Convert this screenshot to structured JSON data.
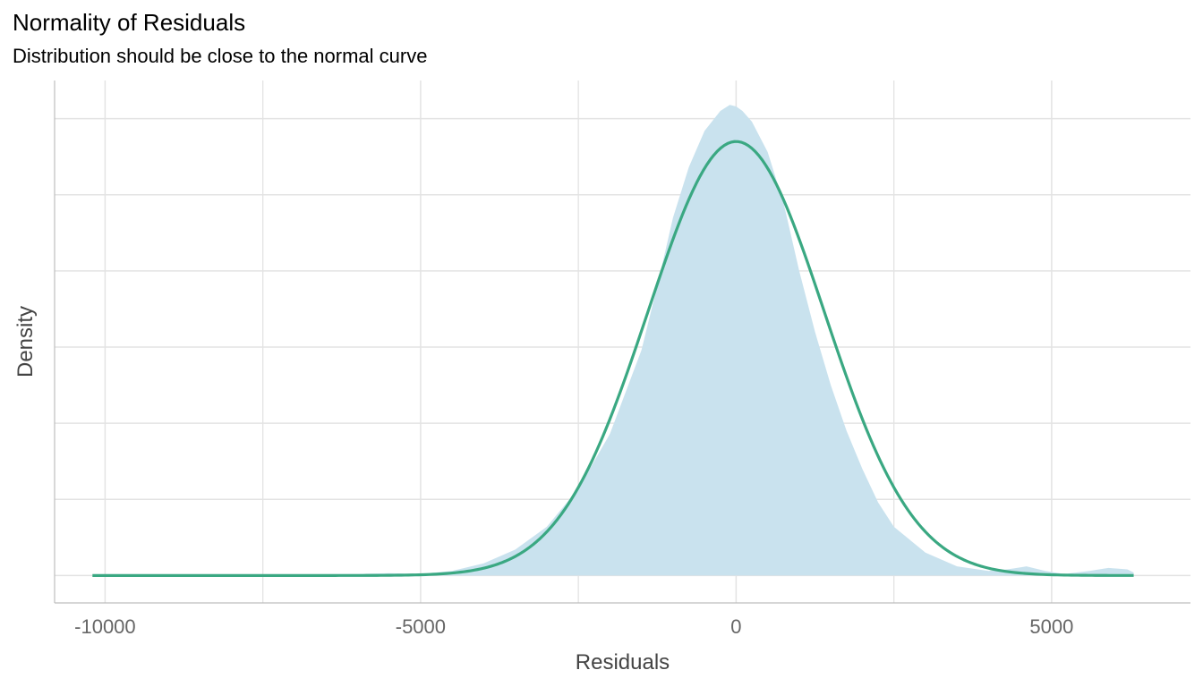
{
  "colors": {
    "density_fill": "#c9e2ee",
    "normal_curve": "#3aa882",
    "grid": "#e3e3e3",
    "axis": "#bdbdbd",
    "tick_text": "#666666",
    "label_text": "#444444"
  },
  "chart_data": {
    "type": "area",
    "title": "Normality of Residuals",
    "subtitle": "Distribution should be close to the normal curve",
    "xlabel": "Residuals",
    "ylabel": "Density",
    "xlim": [
      -10800,
      7200
    ],
    "ylim": [
      -1.8e-05,
      0.000325
    ],
    "x_ticks": [
      -10000,
      -5000,
      0,
      5000
    ],
    "x_tick_labels": [
      "-10000",
      "-5000",
      "0",
      "5000"
    ],
    "y_tick_labels_shown": false,
    "grid": true,
    "legend": "none",
    "series": [
      {
        "type": "area",
        "x": [
          -10200,
          -8000,
          -6000,
          -5500,
          -5000,
          -4500,
          -4000,
          -3500,
          -3000,
          -2500,
          -2000,
          -1500,
          -1250,
          -1000,
          -750,
          -500,
          -250,
          -100,
          0,
          100,
          250,
          500,
          750,
          1000,
          1250,
          1500,
          1750,
          2000,
          2250,
          2500,
          3000,
          3500,
          4000,
          4300,
          4600,
          4900,
          5200,
          5600,
          5900,
          6200,
          6300
        ],
        "y": [
          0.0,
          5e-07,
          1e-06,
          1.5e-06,
          1e-06,
          3e-06,
          8e-06,
          1.7e-05,
          3.2e-05,
          5.7e-05,
          9.3e-05,
          0.000148,
          0.00019,
          0.000235,
          0.000268,
          0.000292,
          0.000305,
          0.000309,
          0.000308,
          0.000305,
          0.000298,
          0.000278,
          0.000245,
          0.0002,
          0.00016,
          0.000125,
          9.5e-05,
          7e-05,
          4.8e-05,
          3.2e-05,
          1.5e-05,
          6e-06,
          3e-06,
          4e-06,
          6e-06,
          3e-06,
          1e-06,
          3e-06,
          5e-06,
          4e-06,
          2e-06
        ]
      },
      {
        "type": "line",
        "distribution": "normal",
        "mean": 0,
        "sd": 1400,
        "x_range": [
          -10200,
          6300
        ]
      }
    ]
  }
}
